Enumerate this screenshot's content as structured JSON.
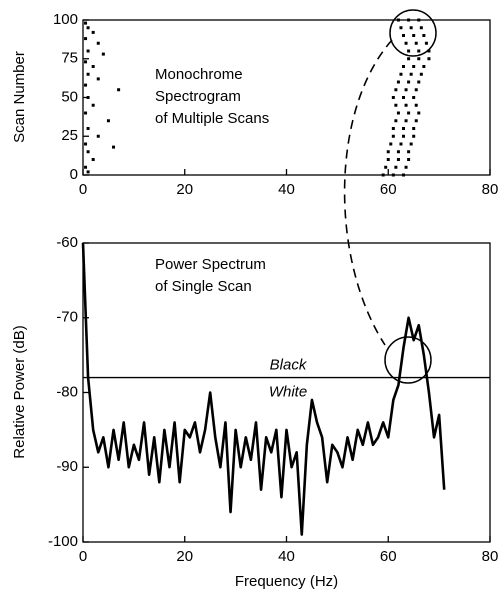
{
  "chart_data": [
    {
      "type": "scatter",
      "ylabel": "Scan Number",
      "annotation": [
        "Monochrome",
        "Spectrogram",
        "of Multiple Scans"
      ],
      "color": "#000000",
      "xlim": [
        0,
        80
      ],
      "xticks": [
        0,
        20,
        40,
        60,
        80
      ],
      "ylim": [
        0,
        100
      ],
      "yticks": [
        0,
        25,
        50,
        75,
        100
      ],
      "x": [
        0.5,
        1,
        2,
        0.5,
        3,
        1,
        4,
        0.5,
        2,
        1,
        3,
        0.5,
        7,
        1,
        2,
        0.5,
        5,
        1,
        3,
        0.5,
        6,
        1,
        2,
        0.5,
        1,
        59,
        61,
        63,
        59.5,
        61.5,
        63.5,
        60,
        62,
        64,
        60,
        62,
        64,
        60.5,
        62.5,
        64.5,
        61,
        63,
        65,
        61,
        63,
        65,
        61.5,
        63.5,
        65.5,
        62,
        64,
        66,
        61.5,
        63.5,
        65.5,
        61,
        63,
        65,
        61.5,
        63.5,
        65.5,
        62,
        64,
        66,
        62.5,
        64.5,
        66.5,
        63,
        65,
        67,
        64,
        66,
        68,
        64,
        66,
        68,
        63.5,
        65.5,
        67.5,
        63,
        65,
        67,
        62.5,
        64.5,
        66.5,
        62,
        64,
        66
      ],
      "y": [
        98,
        95,
        92,
        88,
        85,
        80,
        78,
        73,
        70,
        65,
        62,
        58,
        55,
        50,
        45,
        40,
        35,
        30,
        25,
        20,
        18,
        15,
        10,
        5,
        2,
        0,
        0,
        0,
        5,
        5,
        5,
        10,
        10,
        10,
        15,
        15,
        15,
        20,
        20,
        20,
        25,
        25,
        25,
        30,
        30,
        30,
        35,
        35,
        35,
        40,
        40,
        40,
        45,
        45,
        45,
        50,
        50,
        50,
        55,
        55,
        55,
        60,
        60,
        60,
        65,
        65,
        65,
        70,
        70,
        70,
        75,
        75,
        75,
        80,
        80,
        80,
        85,
        85,
        85,
        90,
        90,
        90,
        95,
        95,
        95,
        100,
        100,
        100
      ]
    },
    {
      "type": "line",
      "xlabel": "Frequency (Hz)",
      "ylabel": "Relative Power (dB)",
      "annotation": [
        "Power Spectrum",
        "of Single Scan"
      ],
      "threshold": -78,
      "threshold_labels": [
        "Black",
        "White"
      ],
      "color": "#000000",
      "xlim": [
        0,
        80
      ],
      "xticks": [
        0,
        20,
        40,
        60,
        80
      ],
      "ylim": [
        -100,
        -60
      ],
      "yticks": [
        -60,
        -70,
        -80,
        -90,
        -100
      ],
      "x": [
        0,
        1,
        2,
        3,
        4,
        5,
        6,
        7,
        8,
        9,
        10,
        11,
        12,
        13,
        14,
        15,
        16,
        17,
        18,
        19,
        20,
        21,
        22,
        23,
        24,
        25,
        26,
        27,
        28,
        29,
        30,
        31,
        32,
        33,
        34,
        35,
        36,
        37,
        38,
        39,
        40,
        41,
        42,
        43,
        44,
        45,
        46,
        47,
        48,
        49,
        50,
        51,
        52,
        53,
        54,
        55,
        56,
        57,
        58,
        59,
        60,
        61,
        62,
        63,
        64,
        65,
        66,
        67,
        68,
        69,
        70,
        71
      ],
      "values": [
        -60,
        -78,
        -85,
        -88,
        -86,
        -90,
        -85,
        -89,
        -84,
        -90,
        -87,
        -89,
        -84,
        -91,
        -86,
        -92,
        -85,
        -90,
        -84,
        -92,
        -85,
        -86,
        -84,
        -88,
        -85,
        -80,
        -86,
        -90,
        -84,
        -96,
        -85,
        -90,
        -86,
        -89,
        -84,
        -93,
        -86,
        -88,
        -85,
        -94,
        -85,
        -90,
        -88,
        -99,
        -87,
        -81,
        -84,
        -86,
        -92,
        -87,
        -88,
        -90,
        -86,
        -89,
        -85,
        -87,
        -84,
        -87,
        -86,
        -84,
        -86,
        -81,
        -79,
        -74,
        -70,
        -73,
        -71,
        -75,
        -80,
        -86,
        -83,
        -93
      ]
    }
  ]
}
